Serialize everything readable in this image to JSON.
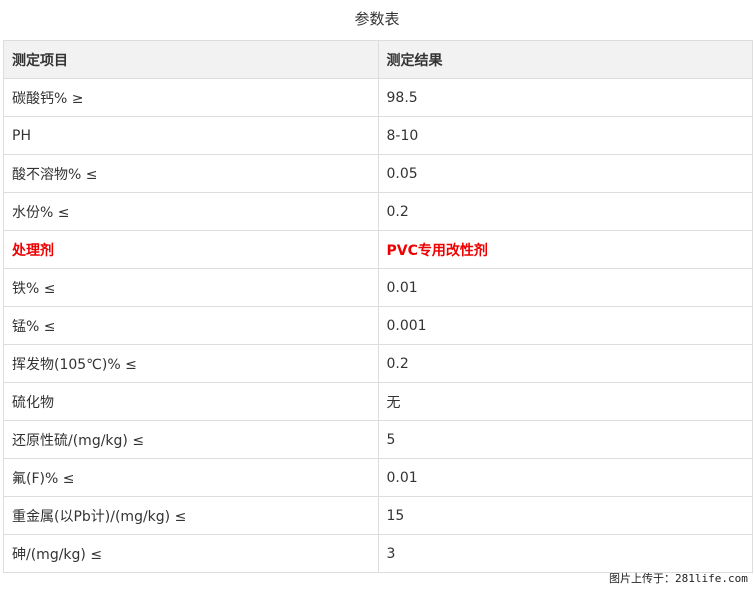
{
  "title": "参数表",
  "headers": [
    "测定项目",
    "测定结果"
  ],
  "rows": [
    [
      "碳酸钙% ≥",
      "98.5"
    ],
    [
      "PH",
      "8-10"
    ],
    [
      "酸不溶物% ≤",
      "0.05"
    ],
    [
      "水份% ≤",
      "0.2"
    ],
    [
      "处理剂",
      "PVC专用改性剂"
    ],
    [
      "铁% ≤",
      "0.01"
    ],
    [
      "锰% ≤",
      "0.001"
    ],
    [
      "挥发物(105℃)% ≤",
      "0.2"
    ],
    [
      "硫化物",
      "无"
    ],
    [
      "还原性硫/(mg/kg) ≤",
      "5"
    ],
    [
      "氟(F)% ≤",
      "0.01"
    ],
    [
      "重金属(以Pb计)/(mg/kg) ≤",
      "15"
    ],
    [
      "砷/(mg/kg) ≤",
      "3"
    ]
  ],
  "highlight_color": "#e00000",
  "watermark": "图片上传于：281life.com"
}
